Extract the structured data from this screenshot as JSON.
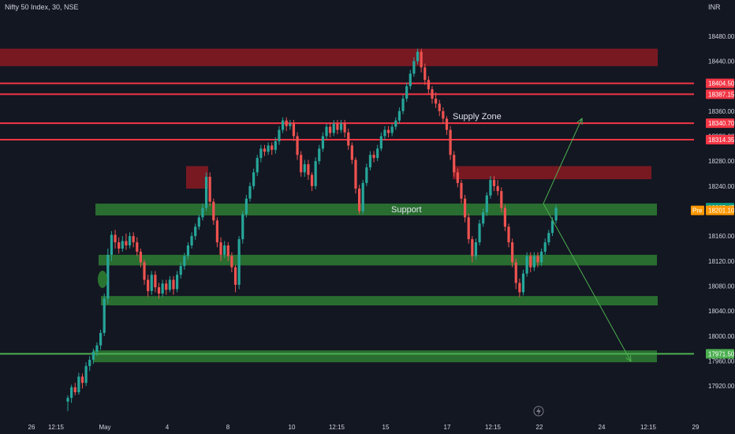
{
  "header": {
    "symbol_title": "Nifty 50 Index, 30, NSE",
    "currency": "INR"
  },
  "colors": {
    "background": "#131722",
    "up": "#26a69a",
    "down": "#ef5350",
    "resistance_line": "#f23645",
    "support_line": "#4caf50",
    "supply_zone_fill": "#8b1a22",
    "support_zone_fill": "#2e7d32",
    "arrow": "#4caf50",
    "pre_badge": "#ff9800",
    "last_price_badge": "#089981"
  },
  "chart_data": {
    "type": "candlestick",
    "ylim": [
      17900,
      18500
    ],
    "y_ticks": [
      "18480.00",
      "18440.00",
      "18360.00",
      "18320.00",
      "18280.00",
      "18240.00",
      "18160.00",
      "18120.00",
      "18080.00",
      "18040.00",
      "18000.00",
      "17960.00",
      "17920.00"
    ],
    "x_ticks": [
      "26",
      "12:15",
      "May",
      "4",
      "8",
      "10",
      "12:15",
      "15",
      "17",
      "12:15",
      "22",
      "24",
      "12:15",
      "29"
    ],
    "horizontal_levels": [
      {
        "value": 18404.5,
        "label": "18404.50",
        "kind": "resistance"
      },
      {
        "value": 18387.15,
        "label": "18387.15",
        "kind": "resistance"
      },
      {
        "value": 18340.7,
        "label": "18340.70",
        "kind": "resistance"
      },
      {
        "value": 18314.35,
        "label": "18314.35",
        "kind": "resistance"
      },
      {
        "value": 17971.5,
        "label": "17971.50",
        "kind": "support"
      }
    ],
    "price_badges": [
      {
        "value": 18205.45,
        "label": "18205.45",
        "kind": "last"
      },
      {
        "value": 18201.1,
        "label": "18201.10",
        "prefix": "Pre",
        "kind": "pre"
      }
    ],
    "zones": [
      {
        "kind": "supply",
        "top": 18460,
        "bottom": 18432
      },
      {
        "kind": "supply",
        "top": 18272,
        "bottom": 18251
      },
      {
        "kind": "supply",
        "top": 18272,
        "bottom": 18236
      },
      {
        "kind": "support",
        "top": 18212,
        "bottom": 18193
      },
      {
        "kind": "support",
        "top": 18130,
        "bottom": 18113
      },
      {
        "kind": "support",
        "top": 18064,
        "bottom": 18049
      },
      {
        "kind": "support",
        "top": 17977,
        "bottom": 17958
      }
    ],
    "annotations": [
      {
        "text": "Supply Zone",
        "value": 18352
      },
      {
        "text": "Support",
        "value": 18203
      }
    ],
    "candles": [
      [
        17895,
        17901,
        17880,
        17905
      ],
      [
        17901,
        17918,
        17893,
        17922
      ],
      [
        17918,
        17910,
        17905,
        17925
      ],
      [
        17910,
        17935,
        17906,
        17941
      ],
      [
        17935,
        17925,
        17916,
        17940
      ],
      [
        17925,
        17952,
        17920,
        17958
      ],
      [
        17952,
        17962,
        17944,
        17968
      ],
      [
        17962,
        17975,
        17955,
        17980
      ],
      [
        17975,
        17985,
        17968,
        17990
      ],
      [
        17985,
        18005,
        17978,
        18010
      ],
      [
        18005,
        18060,
        18000,
        18068
      ],
      [
        18060,
        18130,
        18052,
        18140
      ],
      [
        18130,
        18162,
        18120,
        18168
      ],
      [
        18162,
        18150,
        18140,
        18170
      ],
      [
        18150,
        18140,
        18132,
        18158
      ],
      [
        18140,
        18152,
        18135,
        18160
      ],
      [
        18152,
        18145,
        18138,
        18164
      ],
      [
        18145,
        18160,
        18140,
        18166
      ],
      [
        18160,
        18150,
        18142,
        18166
      ],
      [
        18150,
        18135,
        18128,
        18158
      ],
      [
        18135,
        18118,
        18110,
        18140
      ],
      [
        18118,
        18090,
        18082,
        18122
      ],
      [
        18090,
        18072,
        18063,
        18098
      ],
      [
        18072,
        18098,
        18066,
        18104
      ],
      [
        18098,
        18078,
        18070,
        18104
      ],
      [
        18078,
        18068,
        18060,
        18085
      ],
      [
        18068,
        18084,
        18062,
        18090
      ],
      [
        18084,
        18074,
        18066,
        18090
      ],
      [
        18074,
        18090,
        18070,
        18096
      ],
      [
        18090,
        18075,
        18066,
        18096
      ],
      [
        18075,
        18098,
        18070,
        18104
      ],
      [
        18098,
        18112,
        18092,
        18118
      ],
      [
        18112,
        18128,
        18106,
        18133
      ],
      [
        18128,
        18145,
        18122,
        18150
      ],
      [
        18145,
        18160,
        18140,
        18166
      ],
      [
        18160,
        18175,
        18154,
        18180
      ],
      [
        18175,
        18190,
        18170,
        18194
      ],
      [
        18190,
        18205,
        18185,
        18212
      ],
      [
        18205,
        18255,
        18200,
        18262
      ],
      [
        18255,
        18215,
        18208,
        18262
      ],
      [
        18215,
        18185,
        18178,
        18220
      ],
      [
        18185,
        18150,
        18142,
        18190
      ],
      [
        18150,
        18130,
        18120,
        18158
      ],
      [
        18130,
        18145,
        18125,
        18152
      ],
      [
        18145,
        18128,
        18120,
        18150
      ],
      [
        18128,
        18110,
        18102,
        18134
      ],
      [
        18110,
        18082,
        18070,
        18114
      ],
      [
        18082,
        18155,
        18075,
        18160
      ],
      [
        18155,
        18195,
        18148,
        18200
      ],
      [
        18195,
        18220,
        18190,
        18226
      ],
      [
        18220,
        18240,
        18215,
        18246
      ],
      [
        18240,
        18262,
        18235,
        18268
      ],
      [
        18262,
        18285,
        18256,
        18290
      ],
      [
        18285,
        18300,
        18278,
        18306
      ],
      [
        18300,
        18295,
        18288,
        18306
      ],
      [
        18295,
        18305,
        18290,
        18310
      ],
      [
        18305,
        18298,
        18290,
        18310
      ],
      [
        18298,
        18312,
        18292,
        18318
      ],
      [
        18312,
        18330,
        18306,
        18336
      ],
      [
        18330,
        18345,
        18325,
        18350
      ],
      [
        18345,
        18336,
        18328,
        18350
      ],
      [
        18336,
        18340,
        18330,
        18346
      ],
      [
        18340,
        18320,
        18312,
        18346
      ],
      [
        18320,
        18290,
        18282,
        18326
      ],
      [
        18290,
        18262,
        18255,
        18296
      ],
      [
        18262,
        18275,
        18255,
        18282
      ],
      [
        18275,
        18258,
        18250,
        18282
      ],
      [
        18258,
        18240,
        18232,
        18262
      ],
      [
        18240,
        18280,
        18235,
        18286
      ],
      [
        18280,
        18300,
        18275,
        18306
      ],
      [
        18300,
        18320,
        18295,
        18326
      ],
      [
        18320,
        18335,
        18315,
        18340
      ],
      [
        18335,
        18325,
        18318,
        18342
      ],
      [
        18325,
        18340,
        18320,
        18346
      ],
      [
        18340,
        18330,
        18323,
        18346
      ],
      [
        18330,
        18340,
        18325,
        18346
      ],
      [
        18340,
        18326,
        18318,
        18346
      ],
      [
        18326,
        18305,
        18298,
        18332
      ],
      [
        18305,
        18282,
        18275,
        18310
      ],
      [
        18282,
        18236,
        18228,
        18286
      ],
      [
        18236,
        18200,
        18195,
        18242
      ],
      [
        18200,
        18245,
        18195,
        18250
      ],
      [
        18245,
        18270,
        18240,
        18276
      ],
      [
        18270,
        18290,
        18265,
        18296
      ],
      [
        18290,
        18285,
        18278,
        18296
      ],
      [
        18285,
        18300,
        18280,
        18306
      ],
      [
        18300,
        18320,
        18296,
        18326
      ],
      [
        18320,
        18330,
        18314,
        18336
      ],
      [
        18330,
        18325,
        18318,
        18336
      ],
      [
        18325,
        18335,
        18320,
        18340
      ],
      [
        18335,
        18345,
        18330,
        18350
      ],
      [
        18345,
        18360,
        18340,
        18366
      ],
      [
        18360,
        18380,
        18355,
        18386
      ],
      [
        18380,
        18400,
        18375,
        18406
      ],
      [
        18400,
        18420,
        18395,
        18426
      ],
      [
        18420,
        18440,
        18415,
        18446
      ],
      [
        18440,
        18455,
        18435,
        18460
      ],
      [
        18455,
        18430,
        18422,
        18460
      ],
      [
        18430,
        18410,
        18402,
        18436
      ],
      [
        18410,
        18395,
        18388,
        18416
      ],
      [
        18395,
        18380,
        18372,
        18400
      ],
      [
        18380,
        18372,
        18365,
        18390
      ],
      [
        18372,
        18360,
        18352,
        18378
      ],
      [
        18360,
        18348,
        18340,
        18366
      ],
      [
        18348,
        18330,
        18322,
        18352
      ],
      [
        18330,
        18290,
        18282,
        18336
      ],
      [
        18290,
        18262,
        18255,
        18296
      ],
      [
        18262,
        18245,
        18238,
        18268
      ],
      [
        18245,
        18220,
        18212,
        18250
      ],
      [
        18220,
        18190,
        18182,
        18226
      ],
      [
        18190,
        18155,
        18148,
        18196
      ],
      [
        18155,
        18128,
        18118,
        18160
      ],
      [
        18128,
        18150,
        18122,
        18156
      ],
      [
        18150,
        18180,
        18145,
        18186
      ],
      [
        18180,
        18198,
        18175,
        18204
      ],
      [
        18198,
        18225,
        18192,
        18230
      ],
      [
        18225,
        18250,
        18220,
        18256
      ],
      [
        18250,
        18240,
        18232,
        18256
      ],
      [
        18240,
        18232,
        18225,
        18250
      ],
      [
        18232,
        18205,
        18198,
        18238
      ],
      [
        18205,
        18175,
        18168,
        18210
      ],
      [
        18175,
        18150,
        18142,
        18180
      ],
      [
        18150,
        18118,
        18110,
        18156
      ],
      [
        18118,
        18085,
        18075,
        18124
      ],
      [
        18085,
        18070,
        18062,
        18092
      ],
      [
        18070,
        18100,
        18065,
        18106
      ],
      [
        18100,
        18128,
        18095,
        18134
      ],
      [
        18128,
        18110,
        18102,
        18134
      ],
      [
        18110,
        18128,
        18104,
        18134
      ],
      [
        18128,
        18118,
        18110,
        18134
      ],
      [
        18118,
        18135,
        18112,
        18140
      ],
      [
        18135,
        18150,
        18130,
        18156
      ],
      [
        18150,
        18165,
        18145,
        18170
      ],
      [
        18165,
        18185,
        18160,
        18190
      ],
      [
        18185,
        18205,
        18180,
        18210
      ]
    ],
    "projection_arrows": [
      {
        "from": [
          140,
          18205
        ],
        "to": [
          153,
          18340
        ]
      },
      {
        "from": [
          140,
          18205
        ],
        "to": [
          159,
          17973
        ]
      }
    ]
  }
}
